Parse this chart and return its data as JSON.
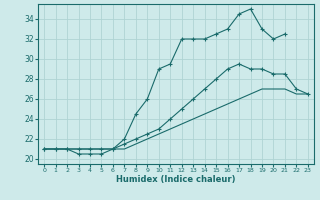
{
  "xlabel": "Humidex (Indice chaleur)",
  "bg_color": "#ceeaea",
  "line_color": "#1a6b6b",
  "grid_color": "#afd4d4",
  "xlim": [
    -0.5,
    23.5
  ],
  "ylim": [
    19.5,
    35.5
  ],
  "yticks": [
    20,
    22,
    24,
    26,
    28,
    30,
    32,
    34
  ],
  "xticks": [
    0,
    1,
    2,
    3,
    4,
    5,
    6,
    7,
    8,
    9,
    10,
    11,
    12,
    13,
    14,
    15,
    16,
    17,
    18,
    19,
    20,
    21,
    22,
    23
  ],
  "line1_x": [
    0,
    1,
    2,
    3,
    4,
    5,
    6,
    7,
    8,
    9,
    10,
    11,
    12,
    13,
    14,
    15,
    16,
    17,
    18,
    19,
    20,
    21
  ],
  "line1_y": [
    21,
    21,
    21,
    20.5,
    20.5,
    20.5,
    21,
    22,
    24.5,
    26,
    29,
    29.5,
    32,
    32,
    32,
    32.5,
    33,
    34.5,
    35,
    33,
    32,
    32.5
  ],
  "line2_x": [
    0,
    1,
    2,
    3,
    4,
    5,
    6,
    7,
    8,
    9,
    10,
    11,
    12,
    13,
    14,
    15,
    16,
    17,
    18,
    19,
    20,
    21,
    22,
    23
  ],
  "line2_y": [
    21,
    21,
    21,
    21,
    21,
    21,
    21,
    21.5,
    22,
    22.5,
    23,
    24,
    25,
    26,
    27,
    28,
    29,
    29.5,
    29,
    29,
    28.5,
    28.5,
    27,
    26.5
  ],
  "line3_x": [
    0,
    1,
    2,
    3,
    4,
    5,
    6,
    7,
    8,
    9,
    10,
    11,
    12,
    13,
    14,
    15,
    16,
    17,
    18,
    19,
    20,
    21,
    22,
    23
  ],
  "line3_y": [
    21,
    21,
    21,
    21,
    21,
    21,
    21,
    21,
    21.5,
    22,
    22.5,
    23,
    23.5,
    24,
    24.5,
    25,
    25.5,
    26,
    26.5,
    27,
    27,
    27,
    26.5,
    26.5
  ]
}
